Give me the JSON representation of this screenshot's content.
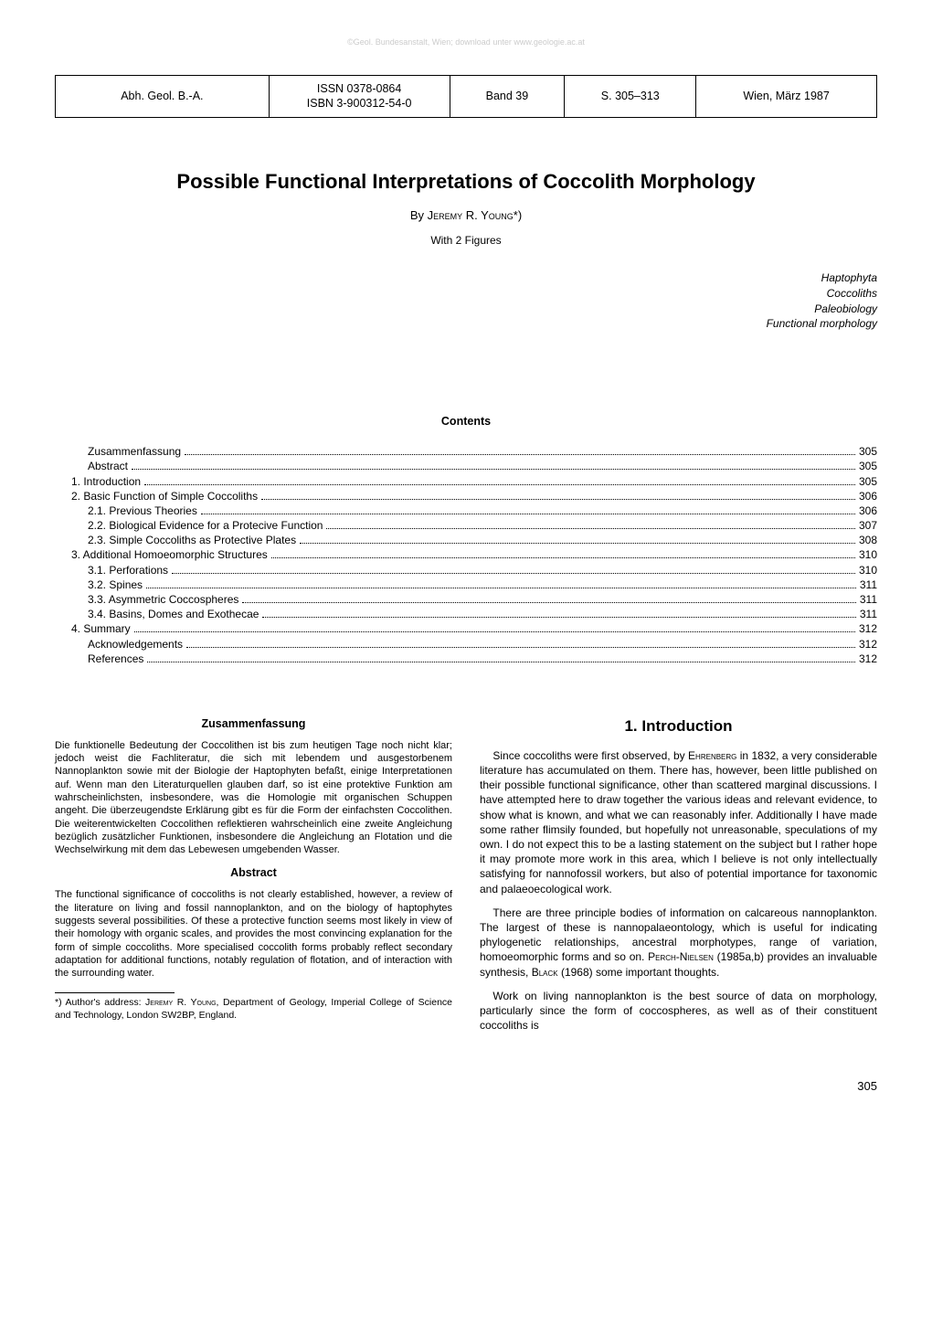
{
  "watermark": "©Geol. Bundesanstalt, Wien; download unter www.geologie.ac.at",
  "meta": {
    "journal": "Abh. Geol. B.-A.",
    "issn_line1": "ISSN 0378-0864",
    "issn_line2": "ISBN 3-900312-54-0",
    "band": "Band 39",
    "pages": "S. 305–313",
    "city_date": "Wien, März 1987"
  },
  "title": "Possible Functional Interpretations of Coccolith Morphology",
  "byline_by": "By ",
  "byline_author": "Jeremy R. Young*)",
  "figures_line": "With 2 Figures",
  "keywords": {
    "k1": "Haptophyta",
    "k2": "Coccoliths",
    "k3": "Paleobiology",
    "k4": "Functional morphology"
  },
  "contents_heading": "Contents",
  "toc": [
    {
      "indent": "ind2",
      "label": "Zusammenfassung",
      "page": "305"
    },
    {
      "indent": "ind2",
      "label": "Abstract",
      "page": "305"
    },
    {
      "indent": "ind1",
      "label": "1. Introduction",
      "page": "305"
    },
    {
      "indent": "ind1",
      "label": "2. Basic Function of Simple Coccoliths",
      "page": "306"
    },
    {
      "indent": "ind2",
      "label": "2.1. Previous Theories",
      "page": "306"
    },
    {
      "indent": "ind2",
      "label": "2.2. Biological Evidence for a Protecive Function",
      "page": "307"
    },
    {
      "indent": "ind2",
      "label": "2.3. Simple Coccoliths as Protective Plates",
      "page": "308"
    },
    {
      "indent": "ind1",
      "label": "3. Additional Homoeomorphic Structures",
      "page": "310"
    },
    {
      "indent": "ind2",
      "label": "3.1. Perforations",
      "page": "310"
    },
    {
      "indent": "ind2",
      "label": "3.2. Spines",
      "page": "311"
    },
    {
      "indent": "ind2",
      "label": "3.3. Asymmetric Coccospheres",
      "page": "311"
    },
    {
      "indent": "ind2",
      "label": "3.4. Basins, Domes and Exothecae",
      "page": "311"
    },
    {
      "indent": "ind1",
      "label": "4. Summary",
      "page": "312"
    },
    {
      "indent": "ind2",
      "label": "Acknowledgements",
      "page": "312"
    },
    {
      "indent": "ind2",
      "label": "References",
      "page": "312"
    }
  ],
  "left": {
    "zus_heading": "Zusammenfassung",
    "zus_text": "Die funktionelle Bedeutung der Coccolithen ist bis zum heutigen Tage noch nicht klar; jedoch weist die Fachliteratur, die sich mit lebendem und ausgestorbenem Nannoplankton sowie mit der Biologie der Haptophyten befaßt, einige Interpretationen auf. Wenn man den Literaturquellen glauben darf, so ist eine protektive Funktion am wahrscheinlichsten, insbesondere, was die Homologie mit organischen Schuppen angeht. Die überzeugendste Erklärung gibt es für die Form der einfachsten Coccolithen. Die weiterentwickelten Coccolithen reflektieren wahrscheinlich eine zweite Angleichung bezüglich zusätzlicher Funktionen, insbesondere die Angleichung an Flotation und die Wechselwirkung mit dem das Lebewesen umgebenden Wasser.",
    "abs_heading": "Abstract",
    "abs_text": "The functional significance of coccoliths is not clearly established, however, a review of the literature on living and fossil nannoplankton, and on the biology of haptophytes suggests several possibilities. Of these a protective function seems most likely in view of their homology with organic scales, and provides the most convincing explanation for the form of simple coccoliths. More specialised coccolith forms probably reflect secondary adaptation for additional functions, notably regulation of flotation, and of interaction with the surrounding water.",
    "footnote_pre": "*) Author's address: ",
    "footnote_name": "Jeremy R. Young",
    "footnote_post": ", Department of Geology, Imperial College of Science and Technology, London SW2BP, England."
  },
  "right": {
    "intro_heading": "1. Introduction",
    "p1a": "Since coccoliths were first observed, by ",
    "p1_name": "Ehrenberg",
    "p1b": " in 1832, a very considerable literature has accumulated on them. There has, however, been little published on their possible functional significance, other than scattered marginal discussions. I have attempted here to draw together the various ideas and relevant evidence, to show what is known, and what we can reasonably infer. Additionally I have made some rather flimsily founded, but hopefully not unreasonable, speculations of my own. I do not expect this to be a lasting statement on the subject but I rather hope it may promote more work in this area, which I believe is not only intellectually satisfying for nannofossil workers, but also of potential importance for taxonomic and palaeoecological work.",
    "p2a": "There are three principle bodies of information on calcareous nannoplankton. The largest of these is nannopalaeontology, which is useful for indicating phylogenetic relationships, ancestral morphotypes, range of variation, homoeomorphic forms and so on. ",
    "p2_name1": "Perch-Nielsen",
    "p2b": " (1985a,b) provides an invaluable synthesis, ",
    "p2_name2": "Black",
    "p2c": " (1968) some important thoughts.",
    "p3": "Work on living nannoplankton is the best source of data on morphology, particularly since the form of coccospheres, as well as of their constituent coccoliths is"
  },
  "page_number": "305"
}
